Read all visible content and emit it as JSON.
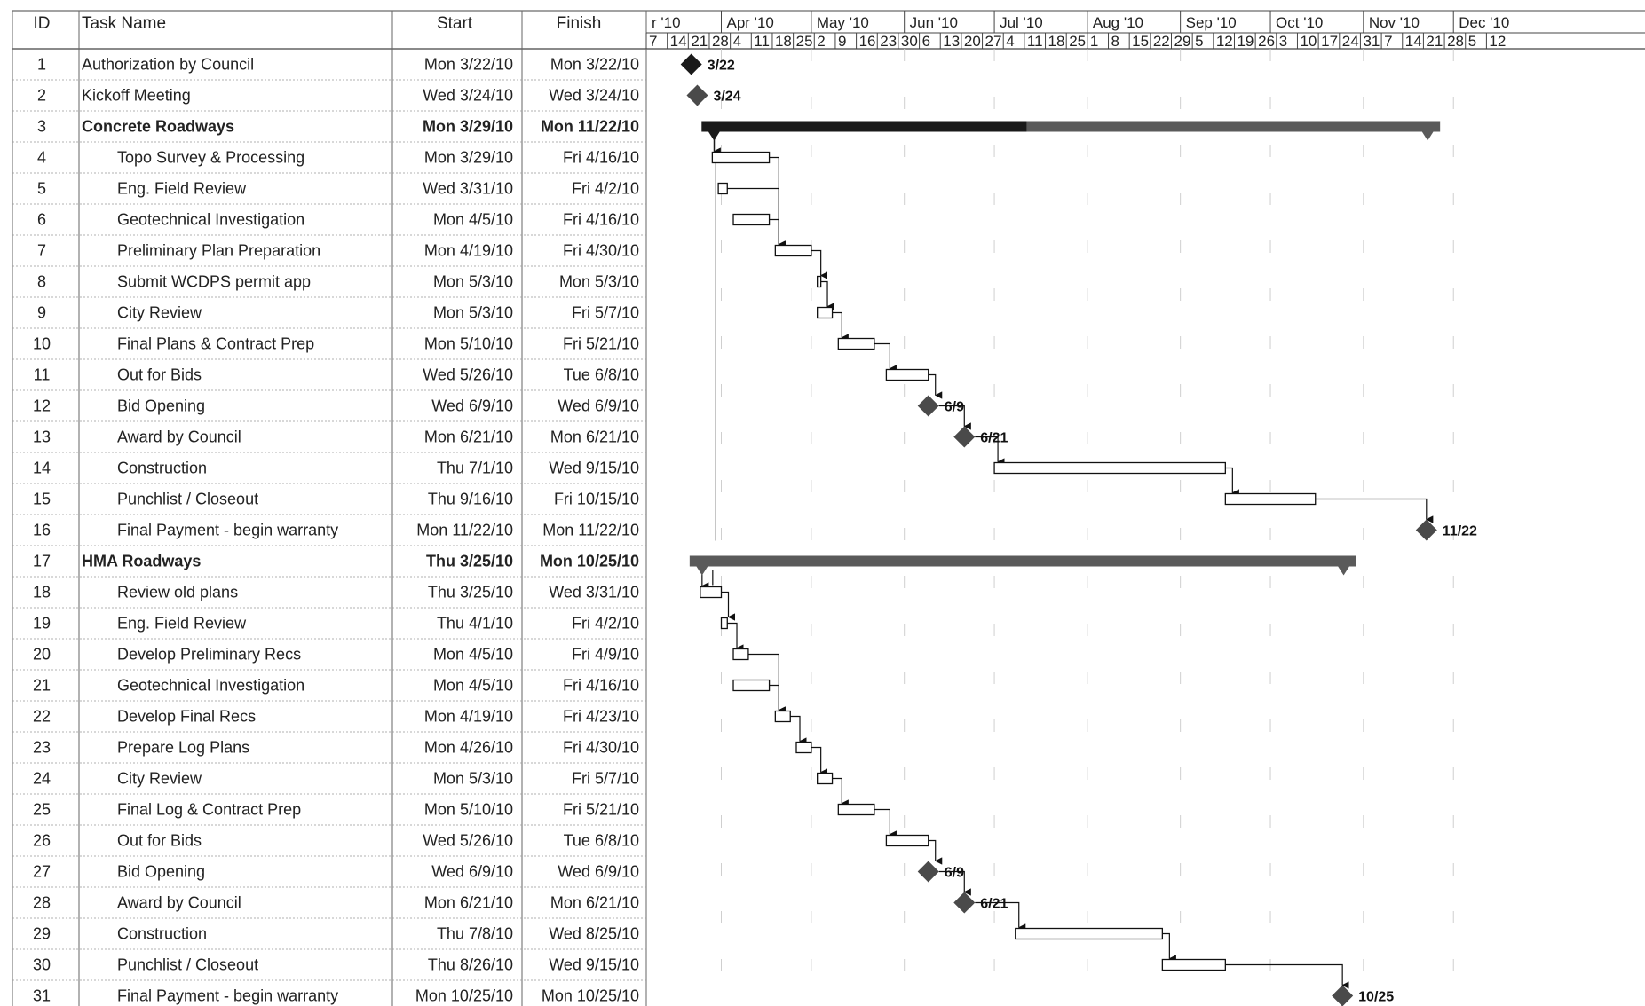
{
  "table": {
    "columns": [
      "ID",
      "Task Name",
      "Start",
      "Finish"
    ],
    "rows": [
      {
        "id": "1",
        "name": "Authorization by Council",
        "start": "Mon 3/22/10",
        "finish": "Mon 3/22/10",
        "level": 0,
        "summary": false
      },
      {
        "id": "2",
        "name": "Kickoff Meeting",
        "start": "Wed 3/24/10",
        "finish": "Wed 3/24/10",
        "level": 0,
        "summary": false
      },
      {
        "id": "3",
        "name": "Concrete Roadways",
        "start": "Mon 3/29/10",
        "finish": "Mon 11/22/10",
        "level": 0,
        "summary": true
      },
      {
        "id": "4",
        "name": "Topo Survey & Processing",
        "start": "Mon 3/29/10",
        "finish": "Fri 4/16/10",
        "level": 1,
        "summary": false
      },
      {
        "id": "5",
        "name": "Eng. Field Review",
        "start": "Wed 3/31/10",
        "finish": "Fri 4/2/10",
        "level": 1,
        "summary": false
      },
      {
        "id": "6",
        "name": "Geotechnical Investigation",
        "start": "Mon 4/5/10",
        "finish": "Fri 4/16/10",
        "level": 1,
        "summary": false
      },
      {
        "id": "7",
        "name": "Preliminary Plan Preparation",
        "start": "Mon 4/19/10",
        "finish": "Fri 4/30/10",
        "level": 1,
        "summary": false
      },
      {
        "id": "8",
        "name": "Submit WCDPS permit app",
        "start": "Mon 5/3/10",
        "finish": "Mon 5/3/10",
        "level": 1,
        "summary": false
      },
      {
        "id": "9",
        "name": "City Review",
        "start": "Mon 5/3/10",
        "finish": "Fri 5/7/10",
        "level": 1,
        "summary": false
      },
      {
        "id": "10",
        "name": "Final Plans & Contract Prep",
        "start": "Mon 5/10/10",
        "finish": "Fri 5/21/10",
        "level": 1,
        "summary": false
      },
      {
        "id": "11",
        "name": "Out for Bids",
        "start": "Wed 5/26/10",
        "finish": "Tue 6/8/10",
        "level": 1,
        "summary": false
      },
      {
        "id": "12",
        "name": "Bid Opening",
        "start": "Wed 6/9/10",
        "finish": "Wed 6/9/10",
        "level": 1,
        "summary": false
      },
      {
        "id": "13",
        "name": "Award by Council",
        "start": "Mon 6/21/10",
        "finish": "Mon 6/21/10",
        "level": 1,
        "summary": false
      },
      {
        "id": "14",
        "name": "Construction",
        "start": "Thu 7/1/10",
        "finish": "Wed 9/15/10",
        "level": 1,
        "summary": false
      },
      {
        "id": "15",
        "name": "Punchlist / Closeout",
        "start": "Thu 9/16/10",
        "finish": "Fri 10/15/10",
        "level": 1,
        "summary": false
      },
      {
        "id": "16",
        "name": "Final Payment - begin warranty",
        "start": "Mon 11/22/10",
        "finish": "Mon 11/22/10",
        "level": 1,
        "summary": false
      },
      {
        "id": "17",
        "name": "HMA Roadways",
        "start": "Thu 3/25/10",
        "finish": "Mon 10/25/10",
        "level": 0,
        "summary": true
      },
      {
        "id": "18",
        "name": "Review old plans",
        "start": "Thu 3/25/10",
        "finish": "Wed 3/31/10",
        "level": 1,
        "summary": false
      },
      {
        "id": "19",
        "name": "Eng. Field Review",
        "start": "Thu 4/1/10",
        "finish": "Fri 4/2/10",
        "level": 1,
        "summary": false
      },
      {
        "id": "20",
        "name": "Develop Preliminary Recs",
        "start": "Mon 4/5/10",
        "finish": "Fri 4/9/10",
        "level": 1,
        "summary": false
      },
      {
        "id": "21",
        "name": "Geotechnical Investigation",
        "start": "Mon 4/5/10",
        "finish": "Fri 4/16/10",
        "level": 1,
        "summary": false
      },
      {
        "id": "22",
        "name": "Develop Final Recs",
        "start": "Mon 4/19/10",
        "finish": "Fri 4/23/10",
        "level": 1,
        "summary": false
      },
      {
        "id": "23",
        "name": "Prepare Log Plans",
        "start": "Mon 4/26/10",
        "finish": "Fri 4/30/10",
        "level": 1,
        "summary": false
      },
      {
        "id": "24",
        "name": "City Review",
        "start": "Mon 5/3/10",
        "finish": "Fri 5/7/10",
        "level": 1,
        "summary": false
      },
      {
        "id": "25",
        "name": "Final Log & Contract Prep",
        "start": "Mon 5/10/10",
        "finish": "Fri 5/21/10",
        "level": 1,
        "summary": false
      },
      {
        "id": "26",
        "name": "Out for Bids",
        "start": "Wed 5/26/10",
        "finish": "Tue 6/8/10",
        "level": 1,
        "summary": false
      },
      {
        "id": "27",
        "name": "Bid Opening",
        "start": "Wed 6/9/10",
        "finish": "Wed 6/9/10",
        "level": 1,
        "summary": false
      },
      {
        "id": "28",
        "name": "Award by Council",
        "start": "Mon 6/21/10",
        "finish": "Mon 6/21/10",
        "level": 1,
        "summary": false
      },
      {
        "id": "29",
        "name": "Construction",
        "start": "Thu 7/8/10",
        "finish": "Wed 8/25/10",
        "level": 1,
        "summary": false
      },
      {
        "id": "30",
        "name": "Punchlist / Closeout",
        "start": "Thu 8/26/10",
        "finish": "Wed 9/15/10",
        "level": 1,
        "summary": false
      },
      {
        "id": "31",
        "name": "Final Payment - begin warranty",
        "start": "Mon 10/25/10",
        "finish": "Mon 10/25/10",
        "level": 1,
        "summary": false
      }
    ]
  },
  "chart_data": {
    "type": "gantt",
    "timeline": {
      "months": [
        "r '10",
        "Apr '10",
        "May '10",
        "Jun '10",
        "Jul '10",
        "Aug '10",
        "Sep '10",
        "Oct '10",
        "Nov '10",
        "Dec '10"
      ],
      "week_labels": [
        "7",
        "14",
        "21",
        "28",
        "4",
        "11",
        "18",
        "25",
        "2",
        "9",
        "16",
        "23",
        "30",
        "6",
        "13",
        "20",
        "27",
        "4",
        "11",
        "18",
        "25",
        "1",
        "8",
        "15",
        "22",
        "29",
        "5",
        "12",
        "19",
        "26",
        "3",
        "10",
        "17",
        "24",
        "31",
        "7",
        "14",
        "21",
        "28",
        "5",
        "12"
      ],
      "range": [
        "2010-03-07",
        "2010-12-19"
      ]
    },
    "tasks": [
      {
        "id": 1,
        "start": "2010-03-22",
        "finish": "2010-03-22",
        "kind": "milestone",
        "label": "3/22"
      },
      {
        "id": 2,
        "start": "2010-03-24",
        "finish": "2010-03-24",
        "kind": "milestone",
        "label": "3/24"
      },
      {
        "id": 3,
        "start": "2010-03-29",
        "finish": "2010-11-22",
        "kind": "summary",
        "percent_complete": 44
      },
      {
        "id": 4,
        "start": "2010-03-29",
        "finish": "2010-04-16",
        "kind": "task"
      },
      {
        "id": 5,
        "start": "2010-03-31",
        "finish": "2010-04-02",
        "kind": "task"
      },
      {
        "id": 6,
        "start": "2010-04-05",
        "finish": "2010-04-16",
        "kind": "task"
      },
      {
        "id": 7,
        "start": "2010-04-19",
        "finish": "2010-04-30",
        "kind": "task"
      },
      {
        "id": 8,
        "start": "2010-05-03",
        "finish": "2010-05-03",
        "kind": "task"
      },
      {
        "id": 9,
        "start": "2010-05-03",
        "finish": "2010-05-07",
        "kind": "task"
      },
      {
        "id": 10,
        "start": "2010-05-10",
        "finish": "2010-05-21",
        "kind": "task"
      },
      {
        "id": 11,
        "start": "2010-05-26",
        "finish": "2010-06-08",
        "kind": "task"
      },
      {
        "id": 12,
        "start": "2010-06-09",
        "finish": "2010-06-09",
        "kind": "milestone",
        "label": "6/9"
      },
      {
        "id": 13,
        "start": "2010-06-21",
        "finish": "2010-06-21",
        "kind": "milestone",
        "label": "6/21"
      },
      {
        "id": 14,
        "start": "2010-07-01",
        "finish": "2010-09-15",
        "kind": "task"
      },
      {
        "id": 15,
        "start": "2010-09-16",
        "finish": "2010-10-15",
        "kind": "task"
      },
      {
        "id": 16,
        "start": "2010-11-22",
        "finish": "2010-11-22",
        "kind": "milestone",
        "label": "11/22"
      },
      {
        "id": 17,
        "start": "2010-03-25",
        "finish": "2010-10-25",
        "kind": "summary",
        "percent_complete": 0
      },
      {
        "id": 18,
        "start": "2010-03-25",
        "finish": "2010-03-31",
        "kind": "task"
      },
      {
        "id": 19,
        "start": "2010-04-01",
        "finish": "2010-04-02",
        "kind": "task"
      },
      {
        "id": 20,
        "start": "2010-04-05",
        "finish": "2010-04-09",
        "kind": "task"
      },
      {
        "id": 21,
        "start": "2010-04-05",
        "finish": "2010-04-16",
        "kind": "task"
      },
      {
        "id": 22,
        "start": "2010-04-19",
        "finish": "2010-04-23",
        "kind": "task"
      },
      {
        "id": 23,
        "start": "2010-04-26",
        "finish": "2010-04-30",
        "kind": "task"
      },
      {
        "id": 24,
        "start": "2010-05-03",
        "finish": "2010-05-07",
        "kind": "task"
      },
      {
        "id": 25,
        "start": "2010-05-10",
        "finish": "2010-05-21",
        "kind": "task"
      },
      {
        "id": 26,
        "start": "2010-05-26",
        "finish": "2010-06-08",
        "kind": "task"
      },
      {
        "id": 27,
        "start": "2010-06-09",
        "finish": "2010-06-09",
        "kind": "milestone",
        "label": "6/9"
      },
      {
        "id": 28,
        "start": "2010-06-21",
        "finish": "2010-06-21",
        "kind": "milestone",
        "label": "6/21"
      },
      {
        "id": 29,
        "start": "2010-07-08",
        "finish": "2010-08-25",
        "kind": "task"
      },
      {
        "id": 30,
        "start": "2010-08-26",
        "finish": "2010-09-15",
        "kind": "task"
      },
      {
        "id": 31,
        "start": "2010-10-25",
        "finish": "2010-10-25",
        "kind": "milestone",
        "label": "10/25"
      }
    ],
    "links": [
      [
        3,
        4
      ],
      [
        4,
        7
      ],
      [
        5,
        7
      ],
      [
        6,
        7
      ],
      [
        7,
        8
      ],
      [
        8,
        9
      ],
      [
        9,
        10
      ],
      [
        10,
        11
      ],
      [
        11,
        12
      ],
      [
        12,
        13
      ],
      [
        13,
        14
      ],
      [
        14,
        15
      ],
      [
        15,
        16
      ],
      [
        17,
        18
      ],
      [
        18,
        19
      ],
      [
        19,
        20
      ],
      [
        20,
        22
      ],
      [
        21,
        22
      ],
      [
        22,
        23
      ],
      [
        23,
        24
      ],
      [
        24,
        25
      ],
      [
        25,
        26
      ],
      [
        26,
        27
      ],
      [
        27,
        28
      ],
      [
        28,
        29
      ],
      [
        29,
        30
      ],
      [
        30,
        31
      ]
    ],
    "colors": {
      "summary_done": "#1a1a1a",
      "summary_remaining": "#5a5a5a",
      "milestone": "#4a4a4a",
      "task_fill": "#ffffff",
      "task_stroke": "#111111",
      "link": "#111111"
    }
  }
}
